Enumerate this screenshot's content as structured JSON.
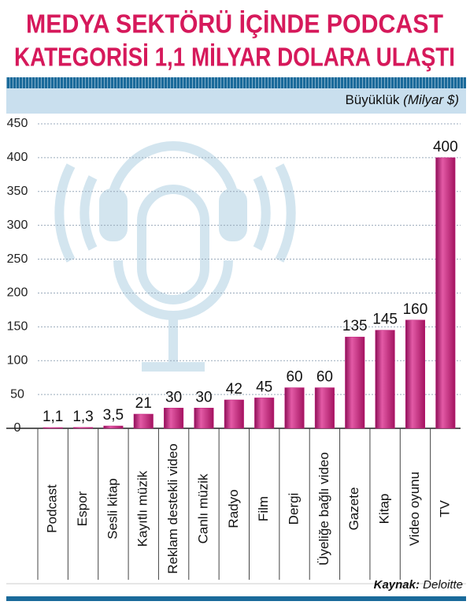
{
  "title_lines": [
    "MEDYA SEKTÖRÜ İÇİNDE PODCAST",
    "KATEGORİSİ 1,1 MİLYAR DOLARA ULAŞTI"
  ],
  "chart_data": {
    "type": "bar",
    "y_label": "Büyüklük",
    "y_unit": "(Milyar $)",
    "categories": [
      "Podcast",
      "Espor",
      "Sesli kitap",
      "Kayıtlı müzik",
      "Reklam destekli video",
      "Canlı müzik",
      "Radyo",
      "Film",
      "Dergi",
      "Üyeliğe bağlı video",
      "Gazete",
      "Kitap",
      "Video oyunu",
      "TV"
    ],
    "values": [
      1.1,
      1.3,
      3.5,
      21,
      30,
      30,
      42,
      45,
      60,
      60,
      135,
      145,
      160,
      400
    ],
    "value_labels": [
      "1,1",
      "1,3",
      "3,5",
      "21",
      "30",
      "30",
      "42",
      "45",
      "60",
      "60",
      "135",
      "145",
      "160",
      "400"
    ],
    "color": "#c2187a",
    "ylim": [
      0,
      450
    ],
    "yticks": [
      0,
      50,
      100,
      150,
      200,
      250,
      300,
      350,
      400,
      450
    ],
    "grid": true
  },
  "source_label": "Kaynak:",
  "source": "Deloitte"
}
